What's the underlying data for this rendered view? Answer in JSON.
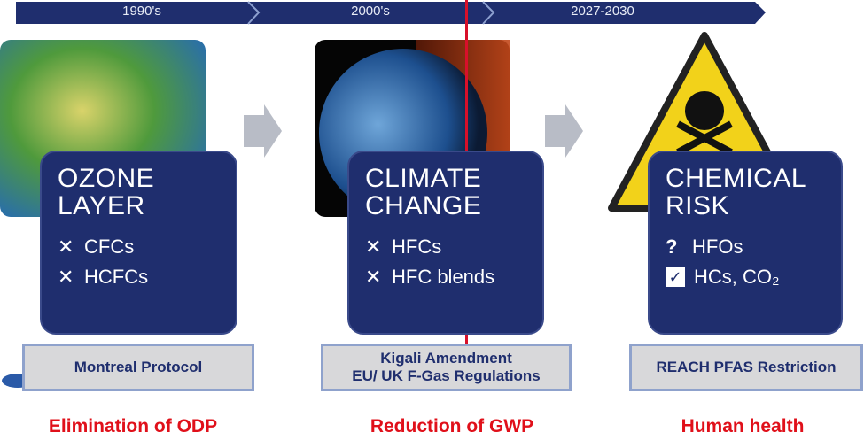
{
  "timeline": [
    "1990's",
    "2000's",
    "2027-2030"
  ],
  "columns": [
    {
      "title": [
        "OZONE",
        "LAYER"
      ],
      "items": [
        {
          "icon": "✕",
          "text": "CFCs"
        },
        {
          "icon": "✕",
          "text": "HCFCs"
        }
      ],
      "regulation": [
        "Montreal Protocol"
      ],
      "outcome": "Elimination of ODP"
    },
    {
      "title": [
        "CLIMATE",
        "CHANGE"
      ],
      "items": [
        {
          "icon": "✕",
          "text": "HFCs"
        },
        {
          "icon": "✕",
          "text": "HFC blends"
        }
      ],
      "regulation": [
        "Kigali Amendment",
        "EU/ UK F-Gas Regulations"
      ],
      "outcome": "Reduction of GWP"
    },
    {
      "title": [
        "CHEMICAL",
        "RISK"
      ],
      "items": [
        {
          "icon": "?",
          "text": "HFOs"
        },
        {
          "icon": "✓",
          "text": "HCs, CO₂"
        }
      ],
      "regulation": [
        "REACH PFAS Restriction"
      ],
      "outcome": "Human health"
    }
  ]
}
